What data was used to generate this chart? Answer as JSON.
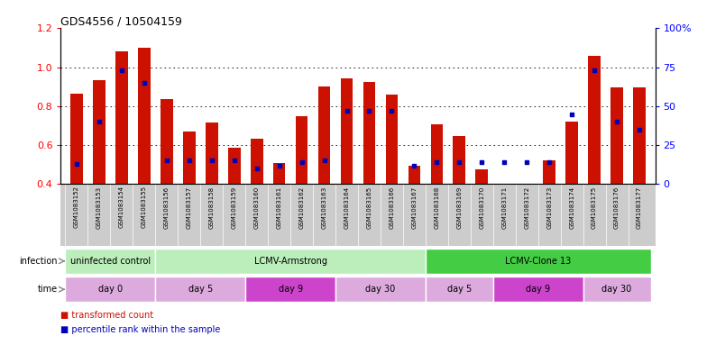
{
  "title": "GDS4556 / 10504159",
  "samples": [
    "GSM1083152",
    "GSM1083153",
    "GSM1083154",
    "GSM1083155",
    "GSM1083156",
    "GSM1083157",
    "GSM1083158",
    "GSM1083159",
    "GSM1083160",
    "GSM1083161",
    "GSM1083162",
    "GSM1083163",
    "GSM1083164",
    "GSM1083165",
    "GSM1083166",
    "GSM1083167",
    "GSM1083168",
    "GSM1083169",
    "GSM1083170",
    "GSM1083171",
    "GSM1083172",
    "GSM1083173",
    "GSM1083174",
    "GSM1083175",
    "GSM1083176",
    "GSM1083177"
  ],
  "bar_values": [
    0.865,
    0.935,
    1.08,
    1.1,
    0.835,
    0.67,
    0.715,
    0.585,
    0.635,
    0.51,
    0.75,
    0.9,
    0.945,
    0.925,
    0.86,
    0.495,
    0.705,
    0.645,
    0.475,
    0.335,
    0.32,
    0.52,
    0.72,
    1.06,
    0.895,
    0.895
  ],
  "percentile_values": [
    13,
    40,
    73,
    65,
    15,
    15,
    15,
    15,
    10,
    12,
    14,
    15,
    47,
    47,
    47,
    12,
    14,
    14,
    14,
    14,
    14,
    14,
    45,
    73,
    40,
    35
  ],
  "bar_color": "#cc1100",
  "dot_color": "#0000bb",
  "bar_bottom": 0.4,
  "ylim_left": [
    0.4,
    1.2
  ],
  "ylim_right": [
    0,
    100
  ],
  "yticks_left": [
    0.4,
    0.6,
    0.8,
    1.0,
    1.2
  ],
  "yticks_right": [
    0,
    25,
    50,
    75,
    100
  ],
  "grid_values": [
    0.6,
    0.8,
    1.0
  ],
  "infection_spans": [
    {
      "label": "uninfected control",
      "start": 0,
      "end": 3,
      "color": "#bbeebb"
    },
    {
      "label": "LCMV-Armstrong",
      "start": 4,
      "end": 15,
      "color": "#bbeebb"
    },
    {
      "label": "LCMV-Clone 13",
      "start": 16,
      "end": 25,
      "color": "#44cc44"
    }
  ],
  "time_spans": [
    {
      "label": "day 0",
      "start": 0,
      "end": 3,
      "color": "#ddaadd"
    },
    {
      "label": "day 5",
      "start": 4,
      "end": 7,
      "color": "#ddaadd"
    },
    {
      "label": "day 9",
      "start": 8,
      "end": 11,
      "color": "#cc44cc"
    },
    {
      "label": "day 30",
      "start": 12,
      "end": 15,
      "color": "#ddaadd"
    },
    {
      "label": "day 5",
      "start": 16,
      "end": 18,
      "color": "#ddaadd"
    },
    {
      "label": "day 9",
      "start": 19,
      "end": 22,
      "color": "#cc44cc"
    },
    {
      "label": "day 30",
      "start": 23,
      "end": 25,
      "color": "#ddaadd"
    }
  ],
  "legend": [
    {
      "label": "transformed count",
      "color": "#cc1100"
    },
    {
      "label": "percentile rank within the sample",
      "color": "#0000bb"
    }
  ],
  "xticklabel_bg": "#cccccc",
  "row_label_fontsize": 7,
  "bar_fontsize": 5.5,
  "title_fontsize": 9
}
